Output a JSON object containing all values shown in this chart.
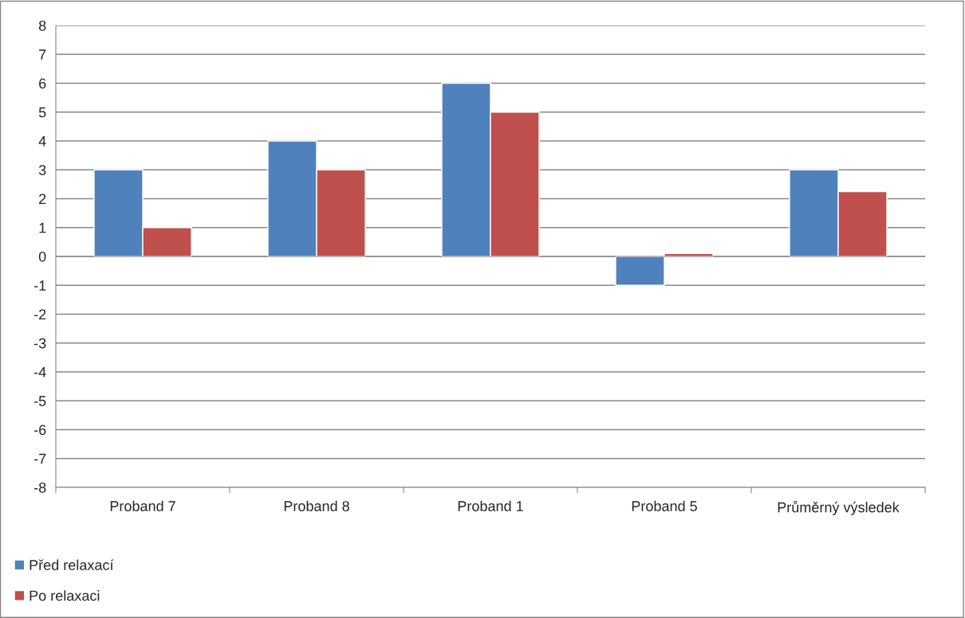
{
  "chart_data": {
    "type": "bar",
    "categories": [
      "Proband 7",
      "Proband 8",
      "Proband 1",
      "Proband 5",
      "Průměrný výsledek"
    ],
    "series": [
      {
        "name": "Před relaxací",
        "color": "#4f81bd",
        "values": [
          3,
          4,
          6,
          -1,
          3
        ]
      },
      {
        "name": "Po relaxaci",
        "color": "#c0504d",
        "values": [
          1,
          3,
          5,
          0.1,
          2.25
        ]
      }
    ],
    "ylim": [
      -8,
      8
    ],
    "yticks": [
      -8,
      -7,
      -6,
      -5,
      -4,
      -3,
      -2,
      -1,
      0,
      1,
      2,
      3,
      4,
      5,
      6,
      7,
      8
    ],
    "grid": "y",
    "legend": "bottom"
  }
}
